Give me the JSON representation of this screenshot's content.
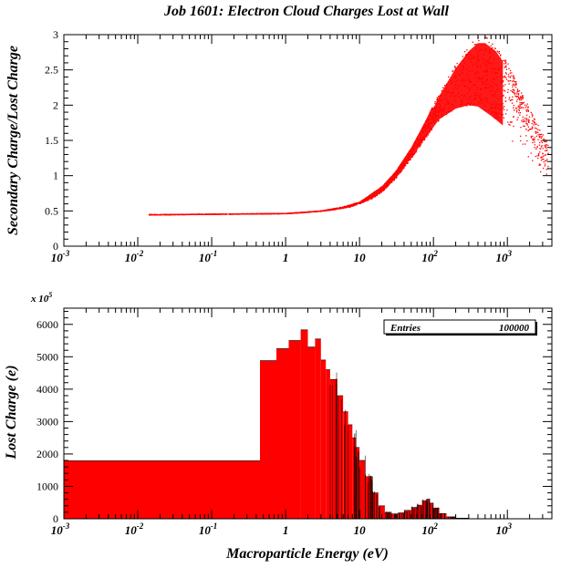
{
  "chart_data": [
    {
      "type": "scatter",
      "title": "Job 1601: Electron Cloud Charges Lost at Wall",
      "ylabel": "Secondary Charge/Lost Charge",
      "xscale": "log",
      "xlim": [
        0.001,
        4000
      ],
      "ylim": [
        0,
        3
      ],
      "x_ticks": [
        {
          "base": "10",
          "exp": "-3"
        },
        {
          "base": "10",
          "exp": "-2"
        },
        {
          "base": "10",
          "exp": "-1"
        },
        {
          "base": "1",
          "exp": ""
        },
        {
          "base": "10",
          "exp": ""
        },
        {
          "base": "10",
          "exp": "2"
        },
        {
          "base": "10",
          "exp": "3"
        }
      ],
      "y_ticks": [
        "0",
        "0.5",
        "1",
        "1.5",
        "2",
        "2.5",
        "3"
      ],
      "marker_color": "#ff0000",
      "curve_lower": [
        [
          0.014,
          0.44
        ],
        [
          0.03,
          0.445
        ],
        [
          0.1,
          0.45
        ],
        [
          0.3,
          0.455
        ],
        [
          1,
          0.46
        ],
        [
          2,
          0.48
        ],
        [
          4,
          0.51
        ],
        [
          7,
          0.55
        ],
        [
          10,
          0.6
        ],
        [
          15,
          0.68
        ],
        [
          20,
          0.77
        ],
        [
          30,
          0.95
        ],
        [
          50,
          1.25
        ],
        [
          80,
          1.55
        ],
        [
          120,
          1.8
        ],
        [
          200,
          1.95
        ],
        [
          300,
          2.0
        ],
        [
          400,
          1.98
        ],
        [
          600,
          1.85
        ],
        [
          900,
          1.7
        ]
      ],
      "curve_upper": [
        [
          0.014,
          0.45
        ],
        [
          0.1,
          0.455
        ],
        [
          1,
          0.465
        ],
        [
          3,
          0.5
        ],
        [
          6,
          0.56
        ],
        [
          10,
          0.63
        ],
        [
          20,
          0.85
        ],
        [
          30,
          1.05
        ],
        [
          50,
          1.4
        ],
        [
          80,
          1.8
        ],
        [
          120,
          2.2
        ],
        [
          200,
          2.6
        ],
        [
          300,
          2.85
        ],
        [
          400,
          2.97
        ],
        [
          500,
          2.97
        ],
        [
          700,
          2.85
        ],
        [
          1000,
          2.6
        ],
        [
          1500,
          2.2
        ],
        [
          2500,
          1.75
        ],
        [
          3500,
          1.45
        ]
      ],
      "grid": false,
      "legend": "none"
    },
    {
      "type": "bar",
      "xlabel": "Macroparticle Energy (eV)",
      "ylabel": "Lost Charge (e)",
      "y_scale_label": "x 10",
      "y_scale_exponent": "5",
      "xscale": "log",
      "xlim": [
        0.001,
        4000
      ],
      "ylim": [
        0,
        6500
      ],
      "x_ticks": [
        {
          "base": "10",
          "exp": "-3"
        },
        {
          "base": "10",
          "exp": "-2"
        },
        {
          "base": "10",
          "exp": "-1"
        },
        {
          "base": "1",
          "exp": ""
        },
        {
          "base": "10",
          "exp": ""
        },
        {
          "base": "10",
          "exp": "2"
        },
        {
          "base": "10",
          "exp": "3"
        }
      ],
      "y_ticks": [
        "0",
        "1000",
        "2000",
        "3000",
        "4000",
        "5000",
        "6000"
      ],
      "stats_box": {
        "label": "Entries",
        "value": "100000"
      },
      "bar_color": "#ff0000",
      "bins": [
        [
          0.001,
          0.45,
          1790
        ],
        [
          0.45,
          0.75,
          4880
        ],
        [
          0.75,
          1.1,
          5250
        ],
        [
          1.1,
          1.6,
          5500
        ],
        [
          1.6,
          2.0,
          5830
        ],
        [
          2.0,
          2.5,
          5300
        ],
        [
          2.5,
          3.0,
          5550
        ],
        [
          3.0,
          3.5,
          4900
        ],
        [
          3.5,
          4.0,
          4600
        ],
        [
          4.0,
          5.0,
          4300
        ],
        [
          5.0,
          6.0,
          3800
        ],
        [
          6.0,
          7.0,
          3300
        ],
        [
          7.0,
          8.0,
          2900
        ],
        [
          8.0,
          9.0,
          2500
        ],
        [
          9.0,
          10,
          2200
        ],
        [
          10,
          12,
          1800
        ],
        [
          12,
          15,
          1300
        ],
        [
          15,
          18,
          800
        ],
        [
          18,
          22,
          400
        ],
        [
          22,
          27,
          200
        ],
        [
          27,
          33,
          150
        ],
        [
          33,
          40,
          180
        ],
        [
          40,
          50,
          260
        ],
        [
          50,
          60,
          350
        ],
        [
          60,
          70,
          420
        ],
        [
          70,
          80,
          560
        ],
        [
          80,
          90,
          600
        ],
        [
          90,
          100,
          480
        ],
        [
          100,
          120,
          330
        ],
        [
          120,
          150,
          160
        ],
        [
          150,
          200,
          60
        ],
        [
          200,
          300,
          20
        ],
        [
          300,
          500,
          5
        ]
      ]
    }
  ]
}
